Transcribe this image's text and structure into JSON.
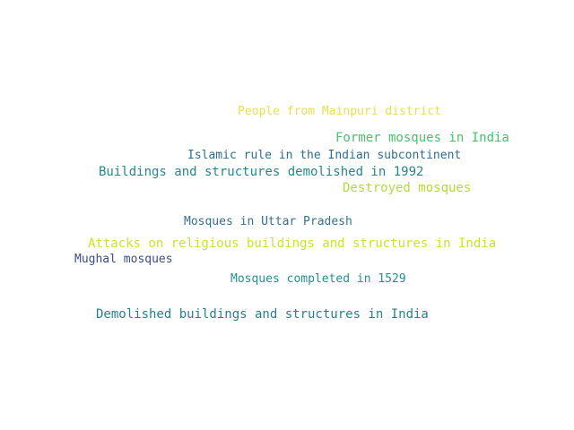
{
  "words": [
    {
      "text": "People from Mainpuri district",
      "color": "#e8e04a"
    },
    {
      "text": "Former mosques in India",
      "color": "#48c16e"
    },
    {
      "text": "Islamic rule in the Indian subcontinent",
      "color": "#2f6d8e"
    },
    {
      "text": "Buildings and structures demolished in 1992",
      "color": "#26878e"
    },
    {
      "text": "Destroyed mosques",
      "color": "#b5d93a"
    },
    {
      "text": "Mosques in Uttar Pradesh",
      "color": "#35718e"
    },
    {
      "text": "Attacks on religious buildings and structures in India",
      "color": "#cde22f"
    },
    {
      "text": "Mughal mosques",
      "color": "#3b4d8a"
    },
    {
      "text": "Mosques completed in 1529",
      "color": "#21928c"
    },
    {
      "text": "Demolished buildings and structures in India",
      "color": "#28808e"
    }
  ]
}
